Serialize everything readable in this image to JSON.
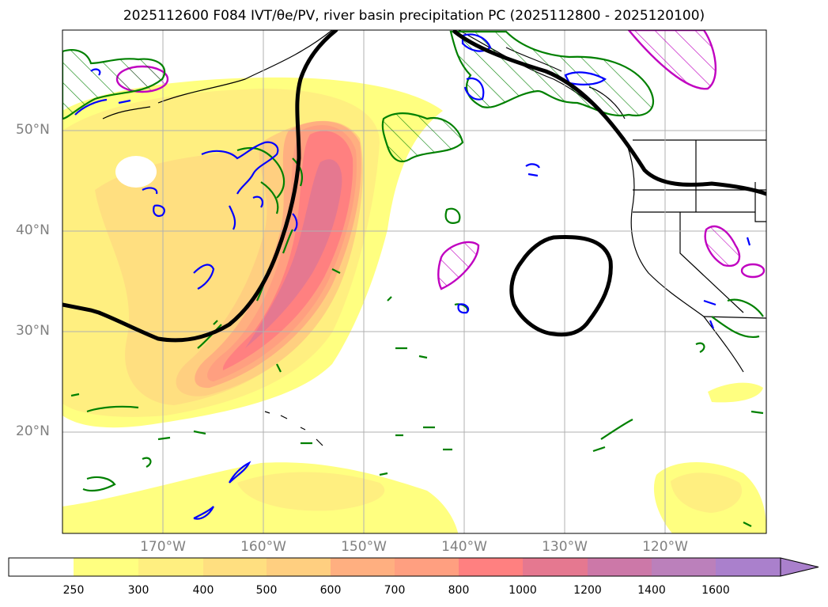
{
  "title": "2025112600 F084 IVT/θe/PV, river basin precipitation PC (2025112800 - 2025120100)",
  "map": {
    "lat_labels": [
      "50°N",
      "40°N",
      "30°N",
      "20°N"
    ],
    "lon_labels": [
      "170°W",
      "160°W",
      "150°W",
      "140°W",
      "130°W",
      "120°W"
    ]
  },
  "colorbar": {
    "levels": [
      "250",
      "300",
      "400",
      "500",
      "600",
      "700",
      "800",
      "1000",
      "1200",
      "1400",
      "1600"
    ],
    "colors": [
      "#ffffff",
      "#ffff80",
      "#ffef80",
      "#ffdf80",
      "#ffcf80",
      "#ffaf80",
      "#ff9f80",
      "#ff8080",
      "#e57890",
      "#cc78a8",
      "#bb80bb",
      "#aa80cc"
    ],
    "extend": "max"
  },
  "legend_colors": {
    "ivt_low": "#ffff80",
    "ivt_high": "#ff8080",
    "theta_e_contour": "#008000",
    "pv_contour": "#0000ff",
    "precip_pc": "#c000c0",
    "jet_line": "#000000"
  }
}
